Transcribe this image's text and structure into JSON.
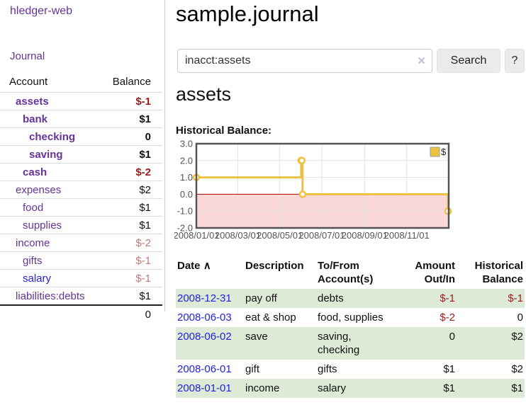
{
  "sidebar": {
    "brand": "hledger-web",
    "nav_journal": "Journal",
    "accounts_table": {
      "col_account": "Account",
      "col_balance": "Balance",
      "rows": [
        {
          "name": "assets",
          "indent": 1,
          "bold": true,
          "link_style": "purple",
          "balance": "$-1",
          "balance_style": "neg-strong"
        },
        {
          "name": "bank",
          "indent": 2,
          "bold": true,
          "link_style": "purple",
          "balance": "$1",
          "balance_style": "pos"
        },
        {
          "name": "checking",
          "indent": 3,
          "bold": true,
          "link_style": "purple",
          "balance": "0",
          "balance_style": "pos"
        },
        {
          "name": "saving",
          "indent": 3,
          "bold": true,
          "link_style": "purple",
          "balance": "$1",
          "balance_style": "pos"
        },
        {
          "name": "cash",
          "indent": 2,
          "bold": true,
          "link_style": "purple",
          "balance": "$-2",
          "balance_style": "neg-strong"
        },
        {
          "name": "expenses",
          "indent": 1,
          "bold": false,
          "link_style": "purple",
          "balance": "$2",
          "balance_style": "pos"
        },
        {
          "name": "food",
          "indent": 2,
          "bold": false,
          "link_style": "purple",
          "balance": "$1",
          "balance_style": "pos"
        },
        {
          "name": "supplies",
          "indent": 2,
          "bold": false,
          "link_style": "purple",
          "balance": "$1",
          "balance_style": "pos"
        },
        {
          "name": "income",
          "indent": 1,
          "bold": false,
          "link_style": "purple",
          "balance": "$-2",
          "balance_style": "neg-soft"
        },
        {
          "name": "gifts",
          "indent": 2,
          "bold": false,
          "link_style": "purple",
          "balance": "$-1",
          "balance_style": "neg-soft"
        },
        {
          "name": "salary",
          "indent": 2,
          "bold": false,
          "link_style": "blue",
          "balance": "$-1",
          "balance_style": "neg-soft"
        },
        {
          "name": "liabilities:debts",
          "indent": 1,
          "bold": false,
          "link_style": "purple",
          "balance": "$1",
          "balance_style": "pos"
        }
      ],
      "total": "0"
    }
  },
  "main": {
    "title": "sample.journal",
    "search": {
      "value": "inacct:assets",
      "clear_icon": "✕",
      "search_button": "Search",
      "help_button": "?"
    },
    "account_heading": "assets",
    "chart_label": "Historical Balance:"
  },
  "chart_data": {
    "type": "line",
    "style": "step",
    "title": "Historical Balance",
    "series": [
      {
        "name": "$",
        "color": "#edc240",
        "points": [
          [
            "2008-01-01",
            1
          ],
          [
            "2008-06-01",
            2
          ],
          [
            "2008-06-02",
            2
          ],
          [
            "2008-06-03",
            0
          ],
          [
            "2008-12-31",
            -1
          ]
        ]
      }
    ],
    "x_range": [
      "2008-01-01",
      "2009-01-01"
    ],
    "x_ticks": [
      "2008/01/01",
      "2008/03/01",
      "2008/05/01",
      "2008/07/01",
      "2008/09/01",
      "2008/11/01"
    ],
    "y_ticks": [
      "3.0",
      "2.0",
      "1.0",
      "0.0",
      "-1.0",
      "-2.0"
    ],
    "ylim": [
      -2,
      3
    ],
    "legend": "$",
    "legend_position": "top-right",
    "grid": true,
    "negative_region_color": "#fbd8d8",
    "zero_line_color": "#aa0000",
    "border_color": "#545454",
    "tick_color": "#545454"
  },
  "register": {
    "headers": {
      "date": "Date",
      "sort_icon": "∧",
      "description": "Description",
      "accounts": "To/From Account(s)",
      "amount": "Amount Out/In",
      "balance": "Historical Balance"
    },
    "rows": [
      {
        "date": "2008-12-31",
        "description": "pay off",
        "accounts": "debts",
        "amount": "$-1",
        "amount_negative": true,
        "balance": "$-1",
        "balance_negative": true,
        "shaded": true
      },
      {
        "date": "2008-06-03",
        "description": "eat & shop",
        "accounts": "food, supplies",
        "amount": "$-2",
        "amount_negative": true,
        "balance": "0",
        "balance_negative": false,
        "shaded": false
      },
      {
        "date": "2008-06-02",
        "description": "save",
        "accounts": "saving, checking",
        "amount": "0",
        "amount_negative": false,
        "balance": "$2",
        "balance_negative": false,
        "shaded": true
      },
      {
        "date": "2008-06-01",
        "description": "gift",
        "accounts": "gifts",
        "amount": "$1",
        "amount_negative": false,
        "balance": "$2",
        "balance_negative": false,
        "shaded": false
      },
      {
        "date": "2008-01-01",
        "description": "income",
        "accounts": "salary",
        "amount": "$1",
        "amount_negative": false,
        "balance": "$1",
        "balance_negative": false,
        "shaded": true
      }
    ]
  },
  "colors": {
    "link_purple": "#663399",
    "link_blue": "#2222dd",
    "negative_strong": "#9b1c1c",
    "negative_soft": "#c47878",
    "row_shade_green": "#dcead6",
    "chart_line_yellow": "#edc240"
  }
}
